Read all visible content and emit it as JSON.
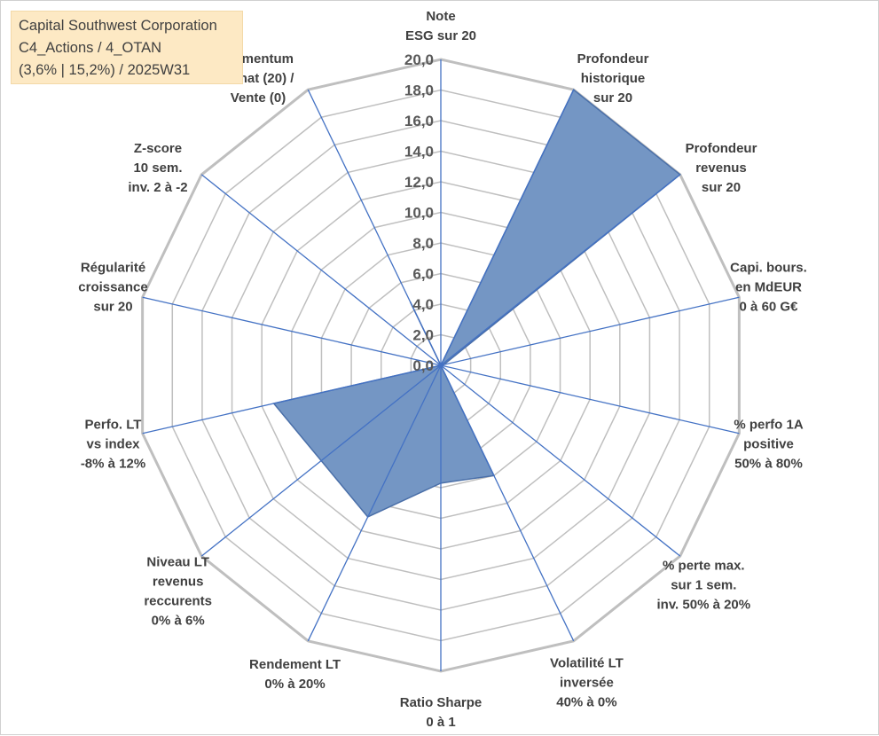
{
  "info_box": {
    "company": "Capital Southwest Corporation",
    "category": "C4_Actions / 4_OTAN",
    "details": "(3,6% | 15,2%) / 2025W31"
  },
  "colors": {
    "grid": "#bfbfbf",
    "spoke": "#4472c4",
    "fill": "#7496c4",
    "fill_stroke": "#4a6fa8",
    "info_bg": "#fde9c4"
  },
  "chart_data": {
    "type": "radar",
    "rmin": 0,
    "rmax": 20,
    "tick_step": 2,
    "tick_labels": [
      "0,0",
      "2,0",
      "4,0",
      "6,0",
      "8,0",
      "10,0",
      "12,0",
      "14,0",
      "16,0",
      "18,0",
      "20,0"
    ],
    "grid": true,
    "categories": [
      "Note\nESG sur 20",
      "Profondeur\nhistorique\nsur 20",
      "Profondeur\nrevenus\nsur 20",
      "Capi. bours.\nen MdEUR\n0 à 60 G€",
      "% perfo 1A\npositive\n50% à 80%",
      "% perte max.\nsur 1 sem.\ninv. 50% à 20%",
      "Volatilité LT\ninversée\n40% à 0%",
      "Ratio Sharpe\n0 à 1",
      "Rendement LT\n0% à 20%",
      "Niveau LT\nrevenus\nreccurents\n0% à 6%",
      "Perfo. LT\nvs index\n-8% à 12%",
      "Régularité\ncroissance\nsur 20",
      "Z-score\n10 sem.\ninv. 2 à -2",
      "Momentum\nAchat (20) /\nVente (0)"
    ],
    "values": [
      0,
      20,
      20,
      0.2,
      0,
      0,
      8,
      7.7,
      11,
      10,
      11.2,
      0,
      0,
      4.6
    ]
  }
}
